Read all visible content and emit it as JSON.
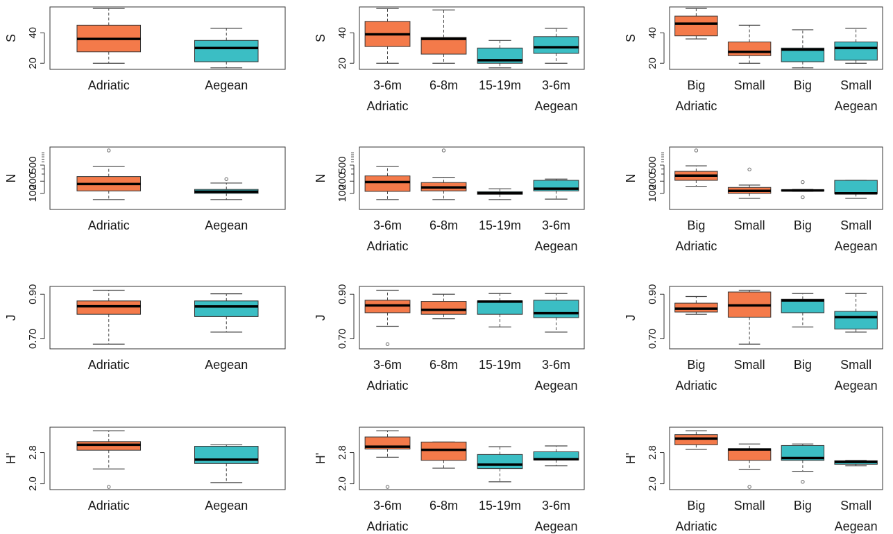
{
  "colors": {
    "Adriatic": "#f47a4a",
    "Aegean": "#3bbec4",
    "median": "#000000",
    "frame": "#333333"
  },
  "chart_data": [
    {
      "type": "box",
      "row": 0,
      "col": 0,
      "ylabel": "S",
      "yticks": [
        "20",
        "40"
      ],
      "yrange": [
        16,
        57
      ],
      "groups": [],
      "boxes": [
        {
          "label": "Adriatic",
          "region": "Adriatic",
          "whislo": 20,
          "q1": 27.5,
          "med": 36,
          "q3": 45,
          "whishi": 56,
          "fliers": []
        },
        {
          "label": "Aegean",
          "region": "Aegean",
          "whislo": 17,
          "q1": 21,
          "med": 30,
          "q3": 35,
          "whishi": 43,
          "fliers": []
        }
      ]
    },
    {
      "type": "box",
      "row": 0,
      "col": 1,
      "ylabel": "S",
      "yticks": [
        "20",
        "40"
      ],
      "yrange": [
        16,
        57
      ],
      "groups": [
        {
          "label": "Adriatic",
          "at": 0
        },
        {
          "label": "Aegean",
          "at": 3
        }
      ],
      "boxes": [
        {
          "label": "3-6m",
          "region": "Adriatic",
          "whislo": 20,
          "q1": 31,
          "med": 39,
          "q3": 47.5,
          "whishi": 56,
          "fliers": []
        },
        {
          "label": "6-8m",
          "region": "Adriatic",
          "whislo": 20,
          "q1": 26,
          "med": 36,
          "q3": 37,
          "whishi": 55,
          "fliers": []
        },
        {
          "label": "15-19m",
          "region": "Aegean",
          "whislo": 17,
          "q1": 20,
          "med": 22,
          "q3": 30,
          "whishi": 35,
          "fliers": []
        },
        {
          "label": "3-6m",
          "region": "Aegean",
          "whislo": 20,
          "q1": 26.5,
          "med": 30.5,
          "q3": 37.5,
          "whishi": 43,
          "fliers": []
        }
      ]
    },
    {
      "type": "box",
      "row": 0,
      "col": 2,
      "ylabel": "S",
      "yticks": [
        "20",
        "40"
      ],
      "yrange": [
        16,
        57
      ],
      "groups": [
        {
          "label": "Adriatic",
          "at": 0
        },
        {
          "label": "Aegean",
          "at": 3
        }
      ],
      "boxes": [
        {
          "label": "Big",
          "region": "Adriatic",
          "whislo": 36,
          "q1": 38,
          "med": 46,
          "q3": 51,
          "whishi": 56,
          "fliers": []
        },
        {
          "label": "Small",
          "region": "Adriatic",
          "whislo": 20,
          "q1": 25,
          "med": 27.5,
          "q3": 34,
          "whishi": 45,
          "fliers": []
        },
        {
          "label": "Big",
          "region": "Aegean",
          "whislo": 17,
          "q1": 21,
          "med": 29,
          "q3": 30,
          "whishi": 42,
          "fliers": []
        },
        {
          "label": "Small",
          "region": "Aegean",
          "whislo": 20,
          "q1": 22,
          "med": 30,
          "q3": 34,
          "whishi": 43,
          "fliers": []
        }
      ]
    },
    {
      "type": "box",
      "row": 1,
      "col": 0,
      "ylabel": "N",
      "yticks": [
        "100",
        "200",
        "500"
      ],
      "yrange": [
        40,
        1400
      ],
      "scale": "log",
      "ytick_values": [
        100,
        200,
        500
      ],
      "groups": [],
      "boxes": [
        {
          "label": "Adriatic",
          "region": "Adriatic",
          "whislo": 70,
          "q1": 115,
          "med": 170,
          "q3": 260,
          "whishi": 460,
          "fliers": [
            1150
          ]
        },
        {
          "label": "Aegean",
          "region": "Aegean",
          "whislo": 70,
          "q1": 100,
          "med": 110,
          "q3": 125,
          "whishi": 180,
          "fliers": [
            225
          ]
        }
      ]
    },
    {
      "type": "box",
      "row": 1,
      "col": 1,
      "ylabel": "N",
      "yticks": [
        "100",
        "200",
        "500"
      ],
      "yrange": [
        40,
        1400
      ],
      "scale": "log",
      "ytick_values": [
        100,
        200,
        500
      ],
      "groups": [
        {
          "label": "Adriatic",
          "at": 0
        },
        {
          "label": "Aegean",
          "at": 3
        }
      ],
      "boxes": [
        {
          "label": "3-6m",
          "region": "Adriatic",
          "whislo": 70,
          "q1": 112,
          "med": 190,
          "q3": 270,
          "whishi": 460,
          "fliers": []
        },
        {
          "label": "6-8m",
          "region": "Adriatic",
          "whislo": 70,
          "q1": 115,
          "med": 140,
          "q3": 185,
          "whishi": 250,
          "fliers": [
            1150
          ]
        },
        {
          "label": "15-19m",
          "region": "Aegean",
          "whislo": 70,
          "q1": 95,
          "med": 100,
          "q3": 110,
          "whishi": 130,
          "fliers": []
        },
        {
          "label": "3-6m",
          "region": "Aegean",
          "whislo": 72,
          "q1": 115,
          "med": 130,
          "q3": 210,
          "whishi": 225,
          "fliers": []
        }
      ]
    },
    {
      "type": "box",
      "row": 1,
      "col": 2,
      "ylabel": "N",
      "yticks": [
        "100",
        "200",
        "500"
      ],
      "yrange": [
        40,
        1400
      ],
      "scale": "log",
      "ytick_values": [
        100,
        200,
        500
      ],
      "groups": [
        {
          "label": "Adriatic",
          "at": 0
        },
        {
          "label": "Aegean",
          "at": 3
        }
      ],
      "boxes": [
        {
          "label": "Big",
          "region": "Adriatic",
          "whislo": 150,
          "q1": 210,
          "med": 275,
          "q3": 350,
          "whishi": 480,
          "fliers": [
            1150
          ]
        },
        {
          "label": "Small",
          "region": "Adriatic",
          "whislo": 75,
          "q1": 100,
          "med": 115,
          "q3": 140,
          "whishi": 160,
          "fliers": [
            390
          ]
        },
        {
          "label": "Big",
          "region": "Aegean",
          "whislo": 112,
          "q1": 115,
          "med": 118,
          "q3": 122,
          "whishi": 125,
          "fliers": [
            190,
            80
          ]
        },
        {
          "label": "Small",
          "region": "Aegean",
          "whislo": 75,
          "q1": 98,
          "med": 100,
          "q3": 210,
          "whishi": 210,
          "fliers": []
        }
      ]
    },
    {
      "type": "box",
      "row": 2,
      "col": 0,
      "ylabel": "J",
      "yticks": [
        "0.70",
        "0.90"
      ],
      "yrange": [
        0.655,
        0.935
      ],
      "ytick_values": [
        0.7,
        0.9
      ],
      "groups": [],
      "boxes": [
        {
          "label": "Adriatic",
          "region": "Adriatic",
          "whislo": 0.676,
          "q1": 0.81,
          "med": 0.846,
          "q3": 0.87,
          "whishi": 0.918,
          "fliers": []
        },
        {
          "label": "Aegean",
          "region": "Aegean",
          "whislo": 0.73,
          "q1": 0.8,
          "med": 0.845,
          "q3": 0.87,
          "whishi": 0.902,
          "fliers": []
        }
      ]
    },
    {
      "type": "box",
      "row": 2,
      "col": 1,
      "ylabel": "J",
      "yticks": [
        "0.70",
        "0.90"
      ],
      "yrange": [
        0.655,
        0.935
      ],
      "ytick_values": [
        0.7,
        0.9
      ],
      "groups": [
        {
          "label": "Adriatic",
          "at": 0
        },
        {
          "label": "Aegean",
          "at": 3
        }
      ],
      "boxes": [
        {
          "label": "3-6m",
          "region": "Adriatic",
          "whislo": 0.756,
          "q1": 0.817,
          "med": 0.85,
          "q3": 0.873,
          "whishi": 0.918,
          "fliers": [
            0.676
          ]
        },
        {
          "label": "6-8m",
          "region": "Adriatic",
          "whislo": 0.79,
          "q1": 0.81,
          "med": 0.83,
          "q3": 0.868,
          "whishi": 0.9,
          "fliers": []
        },
        {
          "label": "15-19m",
          "region": "Aegean",
          "whislo": 0.753,
          "q1": 0.81,
          "med": 0.867,
          "q3": 0.87,
          "whishi": 0.903,
          "fliers": []
        },
        {
          "label": "3-6m",
          "region": "Aegean",
          "whislo": 0.73,
          "q1": 0.795,
          "med": 0.815,
          "q3": 0.873,
          "whishi": 0.903,
          "fliers": []
        }
      ]
    },
    {
      "type": "box",
      "row": 2,
      "col": 2,
      "ylabel": "J",
      "yticks": [
        "0.70",
        "0.90"
      ],
      "yrange": [
        0.655,
        0.935
      ],
      "ytick_values": [
        0.7,
        0.9
      ],
      "groups": [
        {
          "label": "Adriatic",
          "at": 0
        },
        {
          "label": "Aegean",
          "at": 3
        }
      ],
      "boxes": [
        {
          "label": "Big",
          "region": "Adriatic",
          "whislo": 0.81,
          "q1": 0.82,
          "med": 0.835,
          "q3": 0.86,
          "whishi": 0.89,
          "fliers": []
        },
        {
          "label": "Small",
          "region": "Adriatic",
          "whislo": 0.676,
          "q1": 0.797,
          "med": 0.85,
          "q3": 0.91,
          "whishi": 0.918,
          "fliers": []
        },
        {
          "label": "Big",
          "region": "Aegean",
          "whislo": 0.753,
          "q1": 0.817,
          "med": 0.872,
          "q3": 0.878,
          "whishi": 0.903,
          "fliers": []
        },
        {
          "label": "Small",
          "region": "Aegean",
          "whislo": 0.73,
          "q1": 0.744,
          "med": 0.797,
          "q3": 0.823,
          "whishi": 0.903,
          "fliers": []
        }
      ]
    },
    {
      "type": "box",
      "row": 3,
      "col": 0,
      "ylabel": "H'",
      "yticks": [
        "2.0",
        "2.8"
      ],
      "yrange": [
        1.85,
        3.45
      ],
      "ytick_values": [
        2.0,
        2.8
      ],
      "groups": [],
      "boxes": [
        {
          "label": "Adriatic",
          "region": "Adriatic",
          "whislo": 2.38,
          "q1": 2.86,
          "med": 3.0,
          "q3": 3.08,
          "whishi": 3.36,
          "fliers": [
            1.92
          ]
        },
        {
          "label": "Aegean",
          "region": "Aegean",
          "whislo": 2.03,
          "q1": 2.52,
          "med": 2.62,
          "q3": 2.96,
          "whishi": 3.0,
          "fliers": []
        }
      ]
    },
    {
      "type": "box",
      "row": 3,
      "col": 1,
      "ylabel": "H'",
      "yticks": [
        "2.0",
        "2.8"
      ],
      "yrange": [
        1.85,
        3.45
      ],
      "ytick_values": [
        2.0,
        2.8
      ],
      "groups": [
        {
          "label": "Adriatic",
          "at": 0
        },
        {
          "label": "Aegean",
          "at": 3
        }
      ],
      "boxes": [
        {
          "label": "3-6m",
          "region": "Adriatic",
          "whislo": 2.68,
          "q1": 2.89,
          "med": 2.95,
          "q3": 3.2,
          "whishi": 3.36,
          "fliers": [
            1.92
          ]
        },
        {
          "label": "6-8m",
          "region": "Adriatic",
          "whislo": 2.4,
          "q1": 2.6,
          "med": 2.87,
          "q3": 3.07,
          "whishi": 3.07,
          "fliers": []
        },
        {
          "label": "15-19m",
          "region": "Aegean",
          "whislo": 2.05,
          "q1": 2.39,
          "med": 2.49,
          "q3": 2.75,
          "whishi": 2.95,
          "fliers": []
        },
        {
          "label": "3-6m",
          "region": "Aegean",
          "whislo": 2.46,
          "q1": 2.61,
          "med": 2.63,
          "q3": 2.82,
          "whishi": 2.97,
          "fliers": []
        }
      ]
    },
    {
      "type": "box",
      "row": 3,
      "col": 2,
      "ylabel": "H'",
      "yticks": [
        "2.0",
        "2.8"
      ],
      "yrange": [
        1.85,
        3.45
      ],
      "ytick_values": [
        2.0,
        2.8
      ],
      "groups": [
        {
          "label": "Adriatic",
          "at": 0
        },
        {
          "label": "Aegean",
          "at": 3
        }
      ],
      "boxes": [
        {
          "label": "Big",
          "region": "Adriatic",
          "whislo": 2.88,
          "q1": 3.0,
          "med": 3.16,
          "q3": 3.26,
          "whishi": 3.36,
          "fliers": []
        },
        {
          "label": "Small",
          "region": "Adriatic",
          "whislo": 2.37,
          "q1": 2.6,
          "med": 2.88,
          "q3": 2.9,
          "whishi": 3.02,
          "fliers": [
            1.92
          ]
        },
        {
          "label": "Big",
          "region": "Aegean",
          "whislo": 2.32,
          "q1": 2.6,
          "med": 2.66,
          "q3": 2.98,
          "whishi": 3.02,
          "fliers": [
            2.05
          ]
        },
        {
          "label": "Small",
          "region": "Aegean",
          "whislo": 2.46,
          "q1": 2.5,
          "med": 2.56,
          "q3": 2.59,
          "whishi": 2.6,
          "fliers": []
        }
      ]
    }
  ]
}
